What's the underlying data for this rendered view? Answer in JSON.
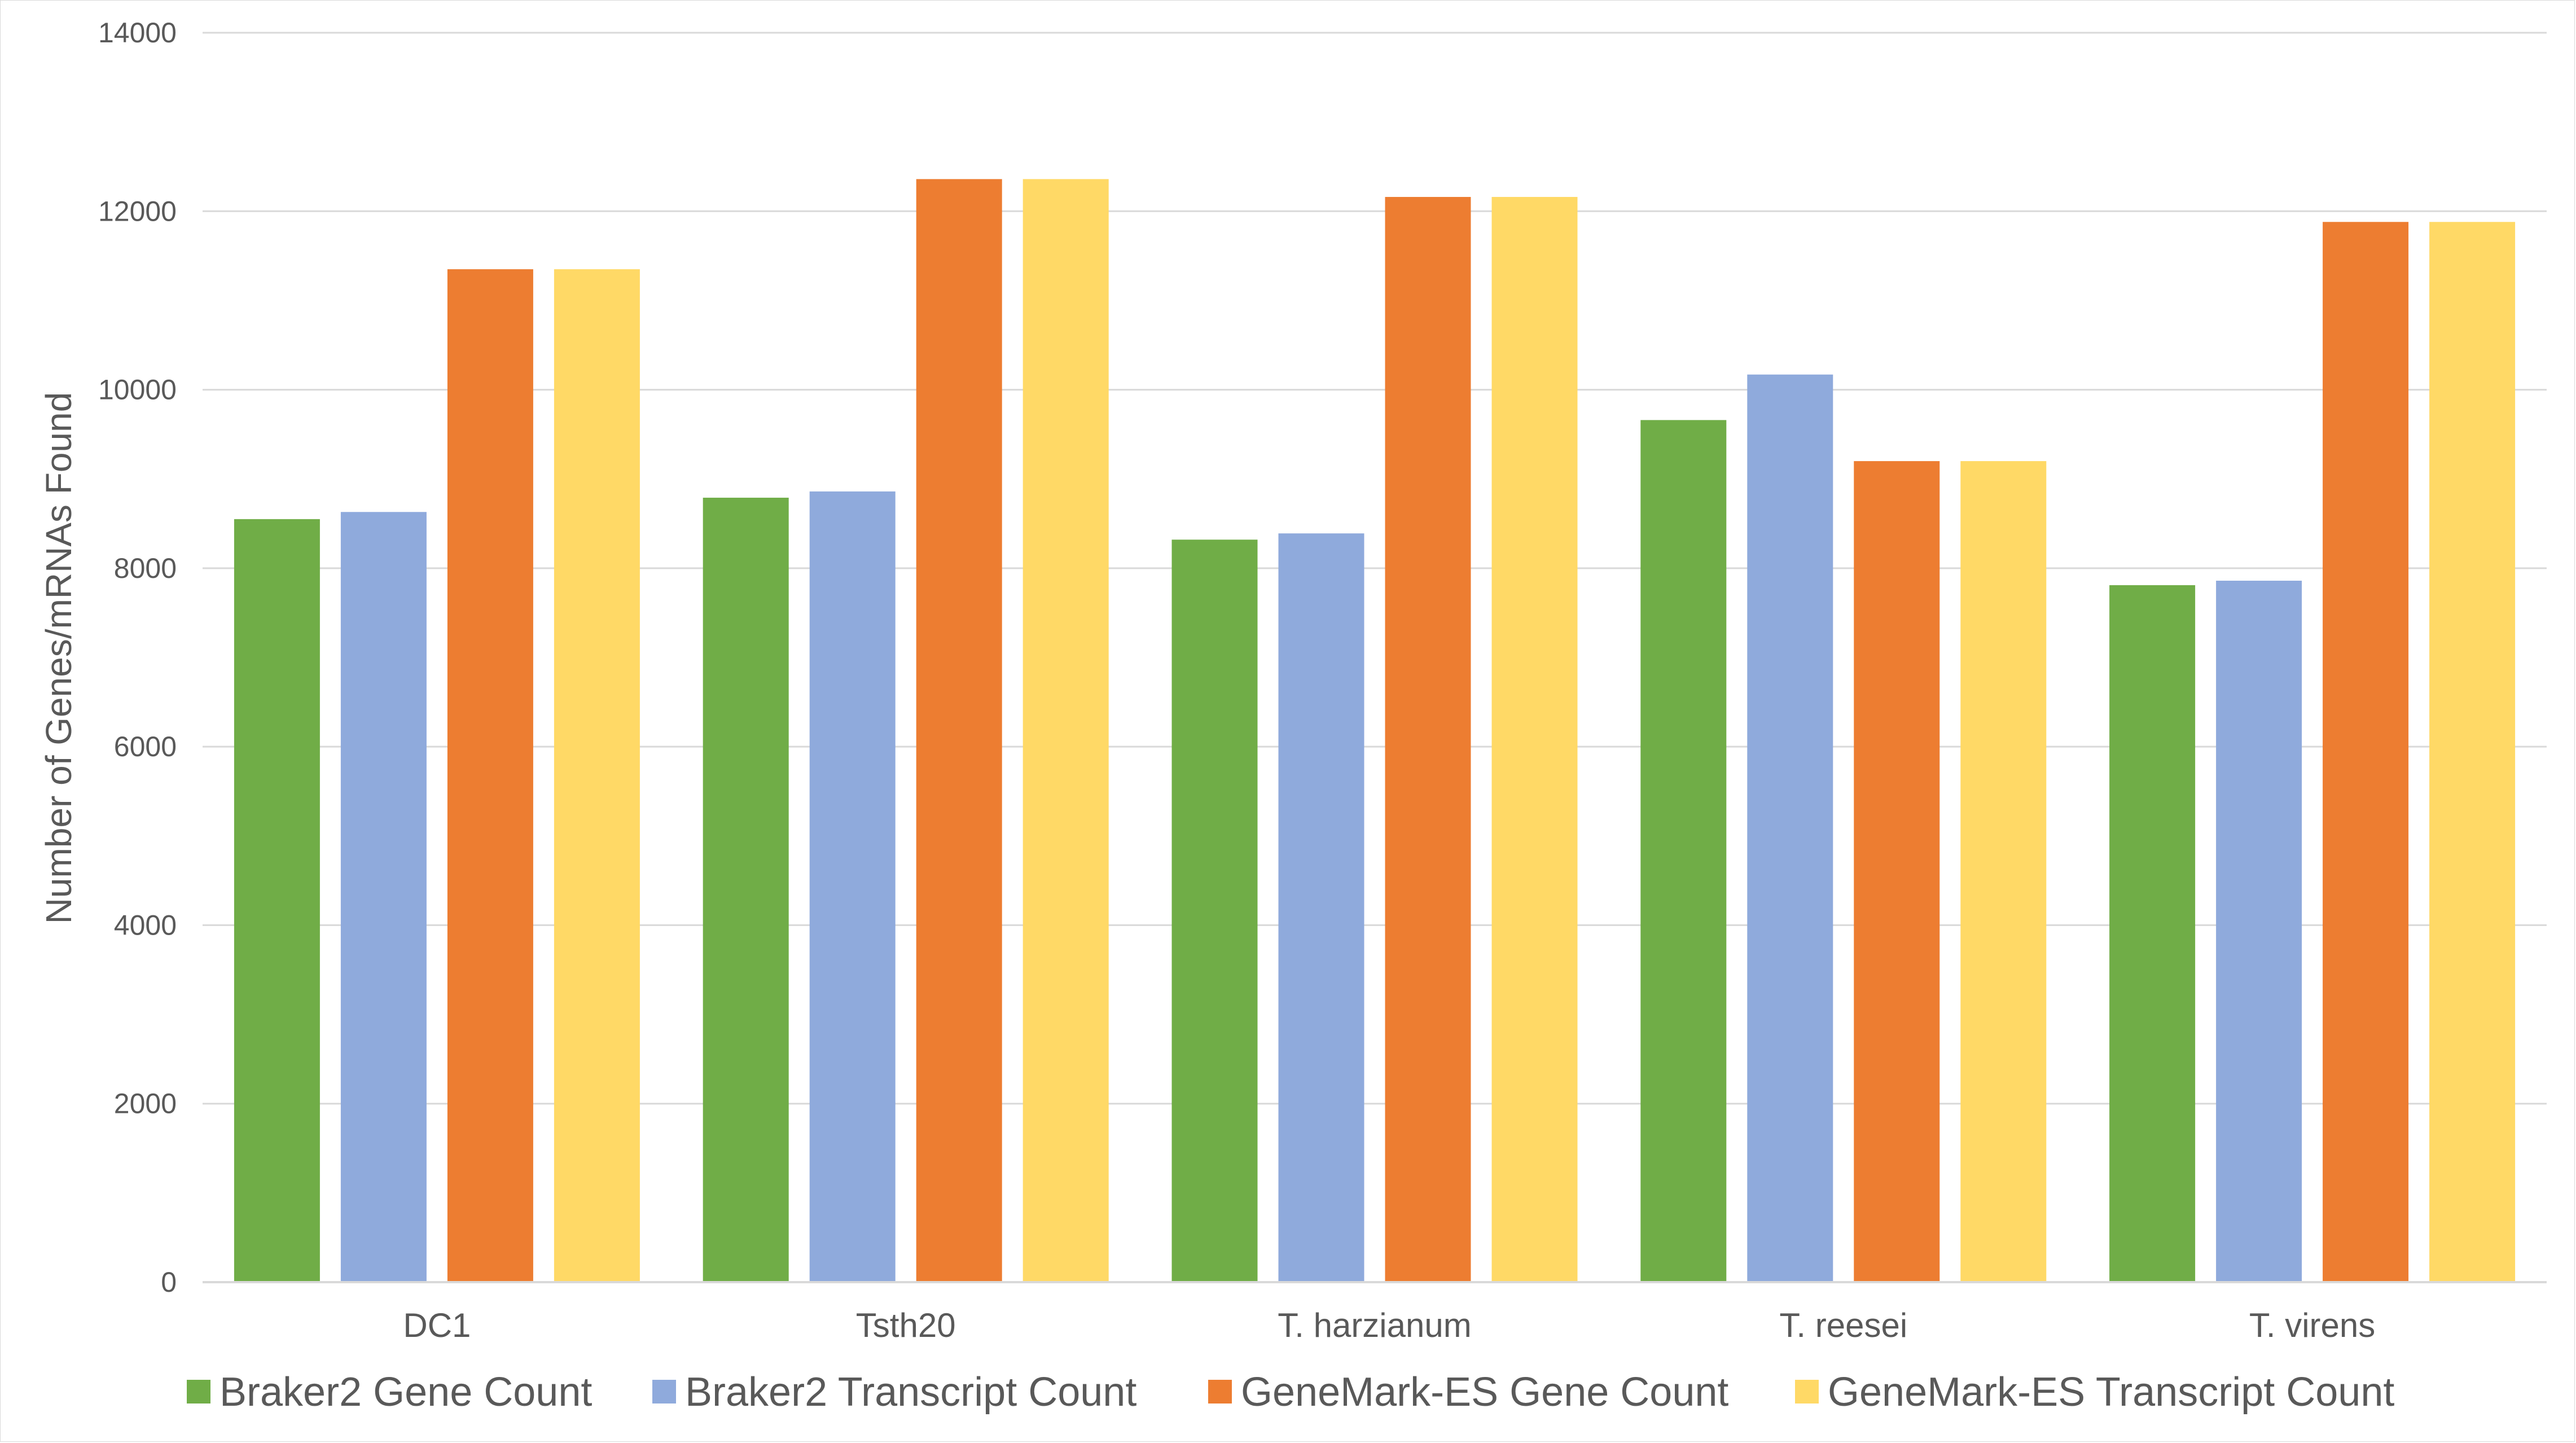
{
  "chart_data": {
    "type": "bar",
    "title": "",
    "xlabel": "",
    "ylabel": "Number of Genes/mRNAs Found",
    "ylim": [
      0,
      14000
    ],
    "yticks": [
      0,
      2000,
      4000,
      6000,
      8000,
      10000,
      12000,
      14000
    ],
    "grid": true,
    "legend_position": "bottom",
    "categories": [
      "DC1",
      "Tsth20",
      "T. harzianum",
      "T. reesei",
      "T. virens"
    ],
    "series": [
      {
        "name": "Braker2 Gene Count",
        "color": "#70ad47",
        "values": [
          8550,
          8790,
          8320,
          9660,
          7810
        ]
      },
      {
        "name": "Braker2 Transcript Count",
        "color": "#8faadc",
        "values": [
          8630,
          8860,
          8390,
          10170,
          7860
        ]
      },
      {
        "name": "GeneMark-ES Gene Count",
        "color": "#ed7d31",
        "values": [
          11350,
          12360,
          12160,
          9200,
          11880
        ]
      },
      {
        "name": "GeneMark-ES Transcript Count",
        "color": "#ffd966",
        "values": [
          11350,
          12360,
          12160,
          9200,
          11880
        ]
      }
    ]
  }
}
